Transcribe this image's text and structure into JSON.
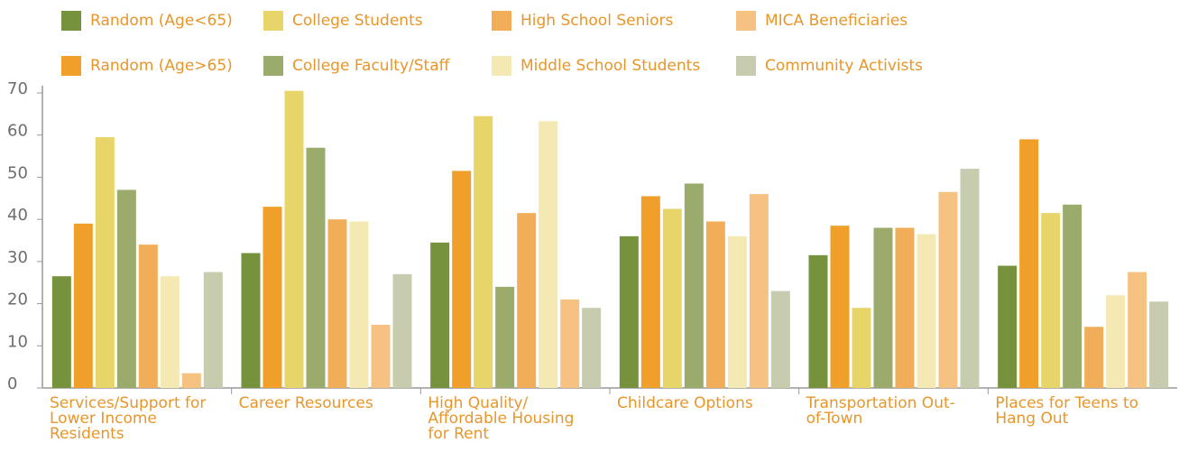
{
  "chart_data": {
    "type": "bar",
    "categories": [
      "Services/Support for Lower Income Residents",
      "Career Resources",
      "High Quality/ Affordable Housing for Rent",
      "Childcare Options",
      "Transportation Out-of-Town",
      "Places for Teens to Hang Out"
    ],
    "series": [
      {
        "name": "Random (Age<65)",
        "color": "#76923c",
        "values": [
          26.5,
          32,
          34.5,
          36,
          31.5,
          29
        ]
      },
      {
        "name": "Random (Age>65)",
        "color": "#f0a02a",
        "values": [
          39,
          43,
          51.5,
          45.5,
          38.5,
          59
        ]
      },
      {
        "name": "College Students",
        "color": "#e8d56a",
        "values": [
          59.5,
          70.5,
          64.5,
          42.5,
          19,
          41.5
        ]
      },
      {
        "name": "College Faculty/Staff",
        "color": "#9aab6c",
        "values": [
          47,
          57,
          24,
          48.5,
          38,
          43.5
        ]
      },
      {
        "name": "High School Seniors",
        "color": "#f2ad58",
        "values": [
          34,
          40,
          41.5,
          39.5,
          38,
          14.5
        ]
      },
      {
        "name": "Middle School Students",
        "color": "#f4e9b2",
        "values": [
          26.5,
          39.5,
          63.3,
          36,
          36.5,
          22
        ]
      },
      {
        "name": "MICA Beneficiaries",
        "color": "#f6c282",
        "values": [
          3.5,
          15,
          21,
          46,
          46.5,
          27.5
        ]
      },
      {
        "name": "Community Activists",
        "color": "#c8ccaf",
        "values": [
          27.5,
          27,
          19,
          23,
          52,
          20.5
        ]
      }
    ],
    "ylim": [
      0,
      70
    ],
    "yticks": [
      0,
      10,
      20,
      30,
      40,
      50,
      60,
      70
    ],
    "grid": false
  }
}
